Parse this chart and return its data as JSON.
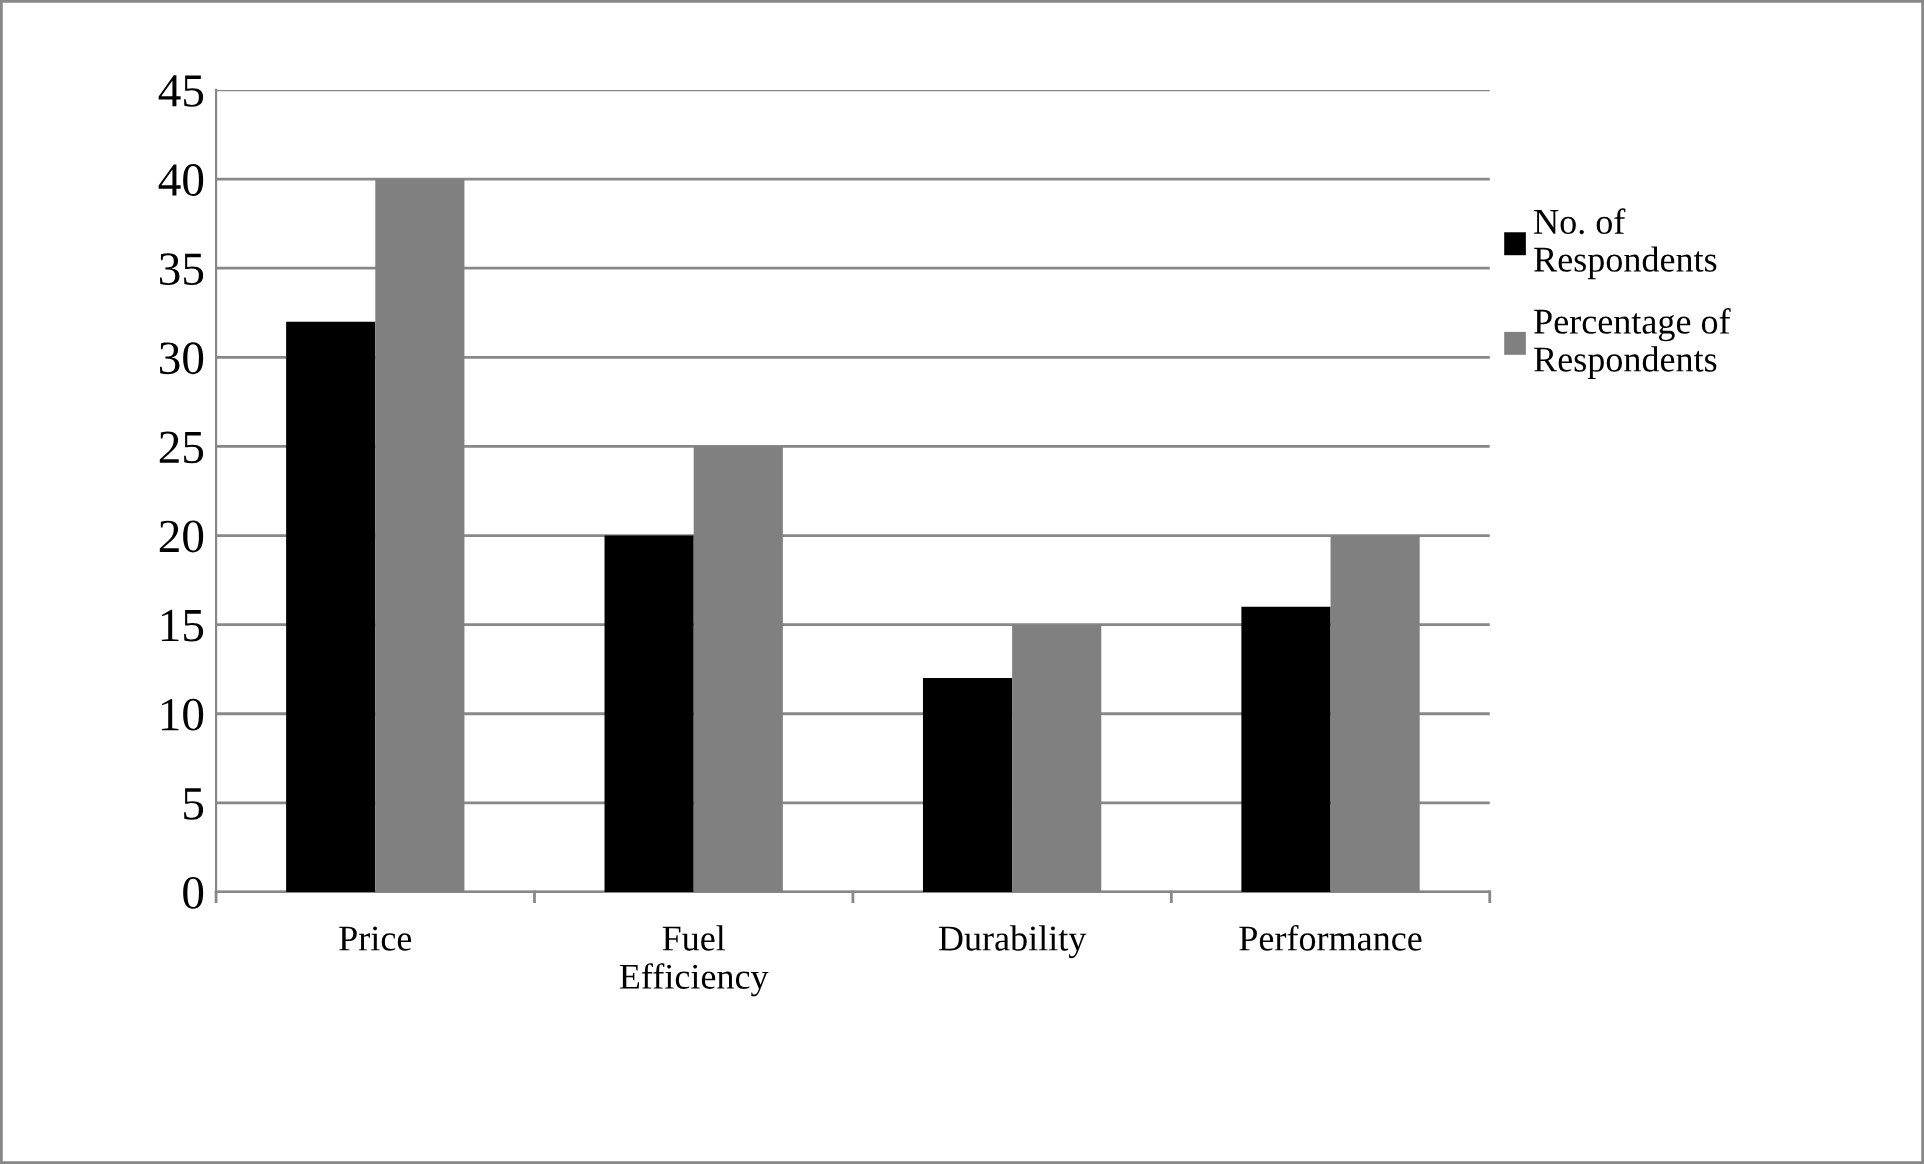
{
  "chart_data": {
    "type": "bar",
    "categories": [
      "Price",
      "Fuel\nEfficiency",
      "Durability",
      "Performance"
    ],
    "series": [
      {
        "name": "No. of\nRespondents",
        "color": "#000000",
        "values": [
          32,
          20,
          12,
          16
        ]
      },
      {
        "name": "Percentage of\nRespondents",
        "color": "#808080",
        "values": [
          40,
          25,
          15,
          20
        ]
      }
    ],
    "ylim": [
      0,
      45
    ],
    "yticks": [
      0,
      5,
      10,
      15,
      20,
      25,
      30,
      35,
      40,
      45
    ],
    "grid": "y",
    "legend": "right"
  }
}
